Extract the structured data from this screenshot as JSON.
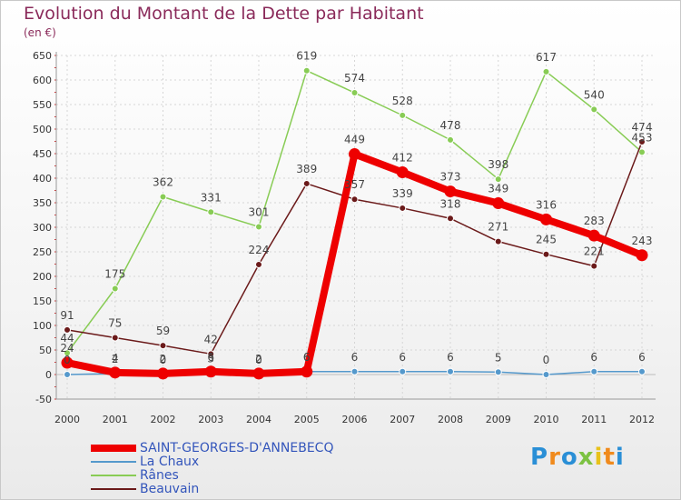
{
  "title": "Evolution du Montant de la Dette par Habitant",
  "subtitle": "(en €)",
  "logo": {
    "text": "Proxiti"
  },
  "colors": {
    "title": "#8a2a5a",
    "saint_georges": "#ee0000",
    "la_chaux": "#5599cc",
    "ranes": "#88cc55",
    "beauvain": "#6b1a1a",
    "legend_text": "#3355bb"
  },
  "chart_data": {
    "type": "line",
    "title": "Evolution du Montant de la Dette par Habitant",
    "ylabel": "(en €)",
    "xlabel": "",
    "x": [
      "2000",
      "2001",
      "2002",
      "2003",
      "2004",
      "2005",
      "2006",
      "2007",
      "2008",
      "2009",
      "2010",
      "2011",
      "2012"
    ],
    "ylim": [
      -50,
      650
    ],
    "yticks": [
      -50,
      0,
      50,
      100,
      150,
      200,
      250,
      300,
      350,
      400,
      450,
      500,
      550,
      600,
      650
    ],
    "grid": true,
    "legend_position": "bottom-left",
    "series": [
      {
        "name": "SAINT-GEORGES-D'ANNEBECQ",
        "color": "#ee0000",
        "values": [
          24,
          4,
          2,
          6,
          2,
          6,
          449,
          412,
          373,
          349,
          316,
          283,
          243
        ]
      },
      {
        "name": "La Chaux",
        "color": "#5599cc",
        "values": [
          0,
          2,
          0,
          3,
          0,
          6,
          6,
          6,
          6,
          5,
          0,
          6,
          6
        ]
      },
      {
        "name": "Rânes",
        "color": "#88cc55",
        "values": [
          44,
          175,
          362,
          331,
          301,
          619,
          574,
          528,
          478,
          398,
          617,
          540,
          453
        ]
      },
      {
        "name": "Beauvain",
        "color": "#6b1a1a",
        "values": [
          91,
          75,
          59,
          42,
          224,
          389,
          357,
          339,
          318,
          271,
          245,
          221,
          474
        ]
      }
    ]
  }
}
